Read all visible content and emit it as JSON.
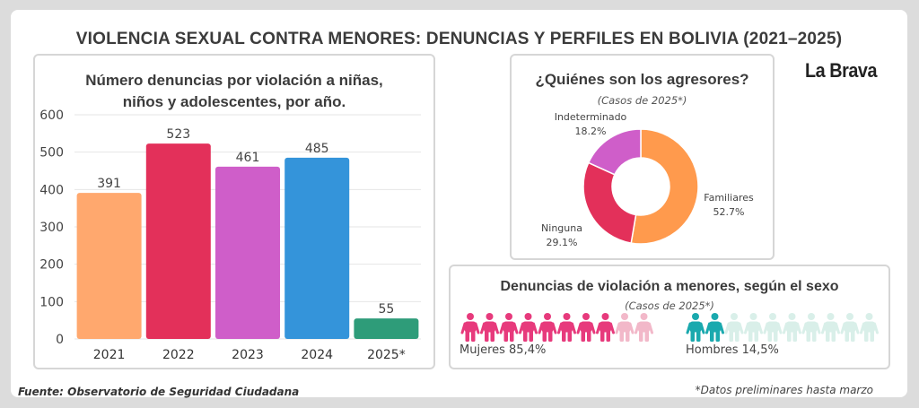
{
  "header": {
    "title": "VIOLENCIA SEXUAL CONTRA MENORES: DENUNCIAS Y PERFILES EN BOLIVIA (2021–2025)",
    "brand": "La Brava"
  },
  "footer": {
    "source": "Fuente: Observatorio de Seguridad Ciudadana",
    "note": "*Datos preliminares hasta marzo"
  },
  "chart_data": [
    {
      "type": "bar",
      "title_line1": "Número denuncias por violación a niñas,",
      "title_line2": "niños y adolescentes, por año.",
      "categories": [
        "2021",
        "2022",
        "2023",
        "2024",
        "2025*"
      ],
      "values": [
        391,
        523,
        461,
        485,
        55
      ],
      "colors": [
        "#ffa86e",
        "#e3305a",
        "#cf5ec9",
        "#3494da",
        "#2e9c79"
      ],
      "ylim": [
        0,
        600
      ],
      "yticks": [
        0,
        100,
        200,
        300,
        400,
        500,
        600
      ],
      "grid": true
    },
    {
      "type": "pie",
      "title": "¿Quiénes son los agresores?",
      "subtitle": "(Casos de 2025*)",
      "donut": true,
      "slices": [
        {
          "label": "Familiares",
          "pct_label": "52.7%",
          "value": 52.7,
          "color": "#ff9a4d"
        },
        {
          "label": "Ninguna",
          "pct_label": "29.1%",
          "value": 29.1,
          "color": "#e3305a"
        },
        {
          "label": "Indeterminado",
          "pct_label": "18.2%",
          "value": 18.2,
          "color": "#cf5ec9"
        }
      ]
    },
    {
      "type": "pictogram",
      "title": "Denuncias de violación a menores, según el sexo",
      "subtitle": "(Casos de 2025*)",
      "groups": [
        {
          "label": "Mujeres 85,4%",
          "value": 85.4,
          "icons_total": 10,
          "icons_filled": 8,
          "color": "#e73a7c",
          "faded_color": "#f2b8c9"
        },
        {
          "label": "Hombres 14,5%",
          "value": 14.5,
          "icons_total": 10,
          "icons_filled": 2,
          "color": "#1aa9ae",
          "faded_color": "#d9efe9"
        }
      ]
    }
  ]
}
